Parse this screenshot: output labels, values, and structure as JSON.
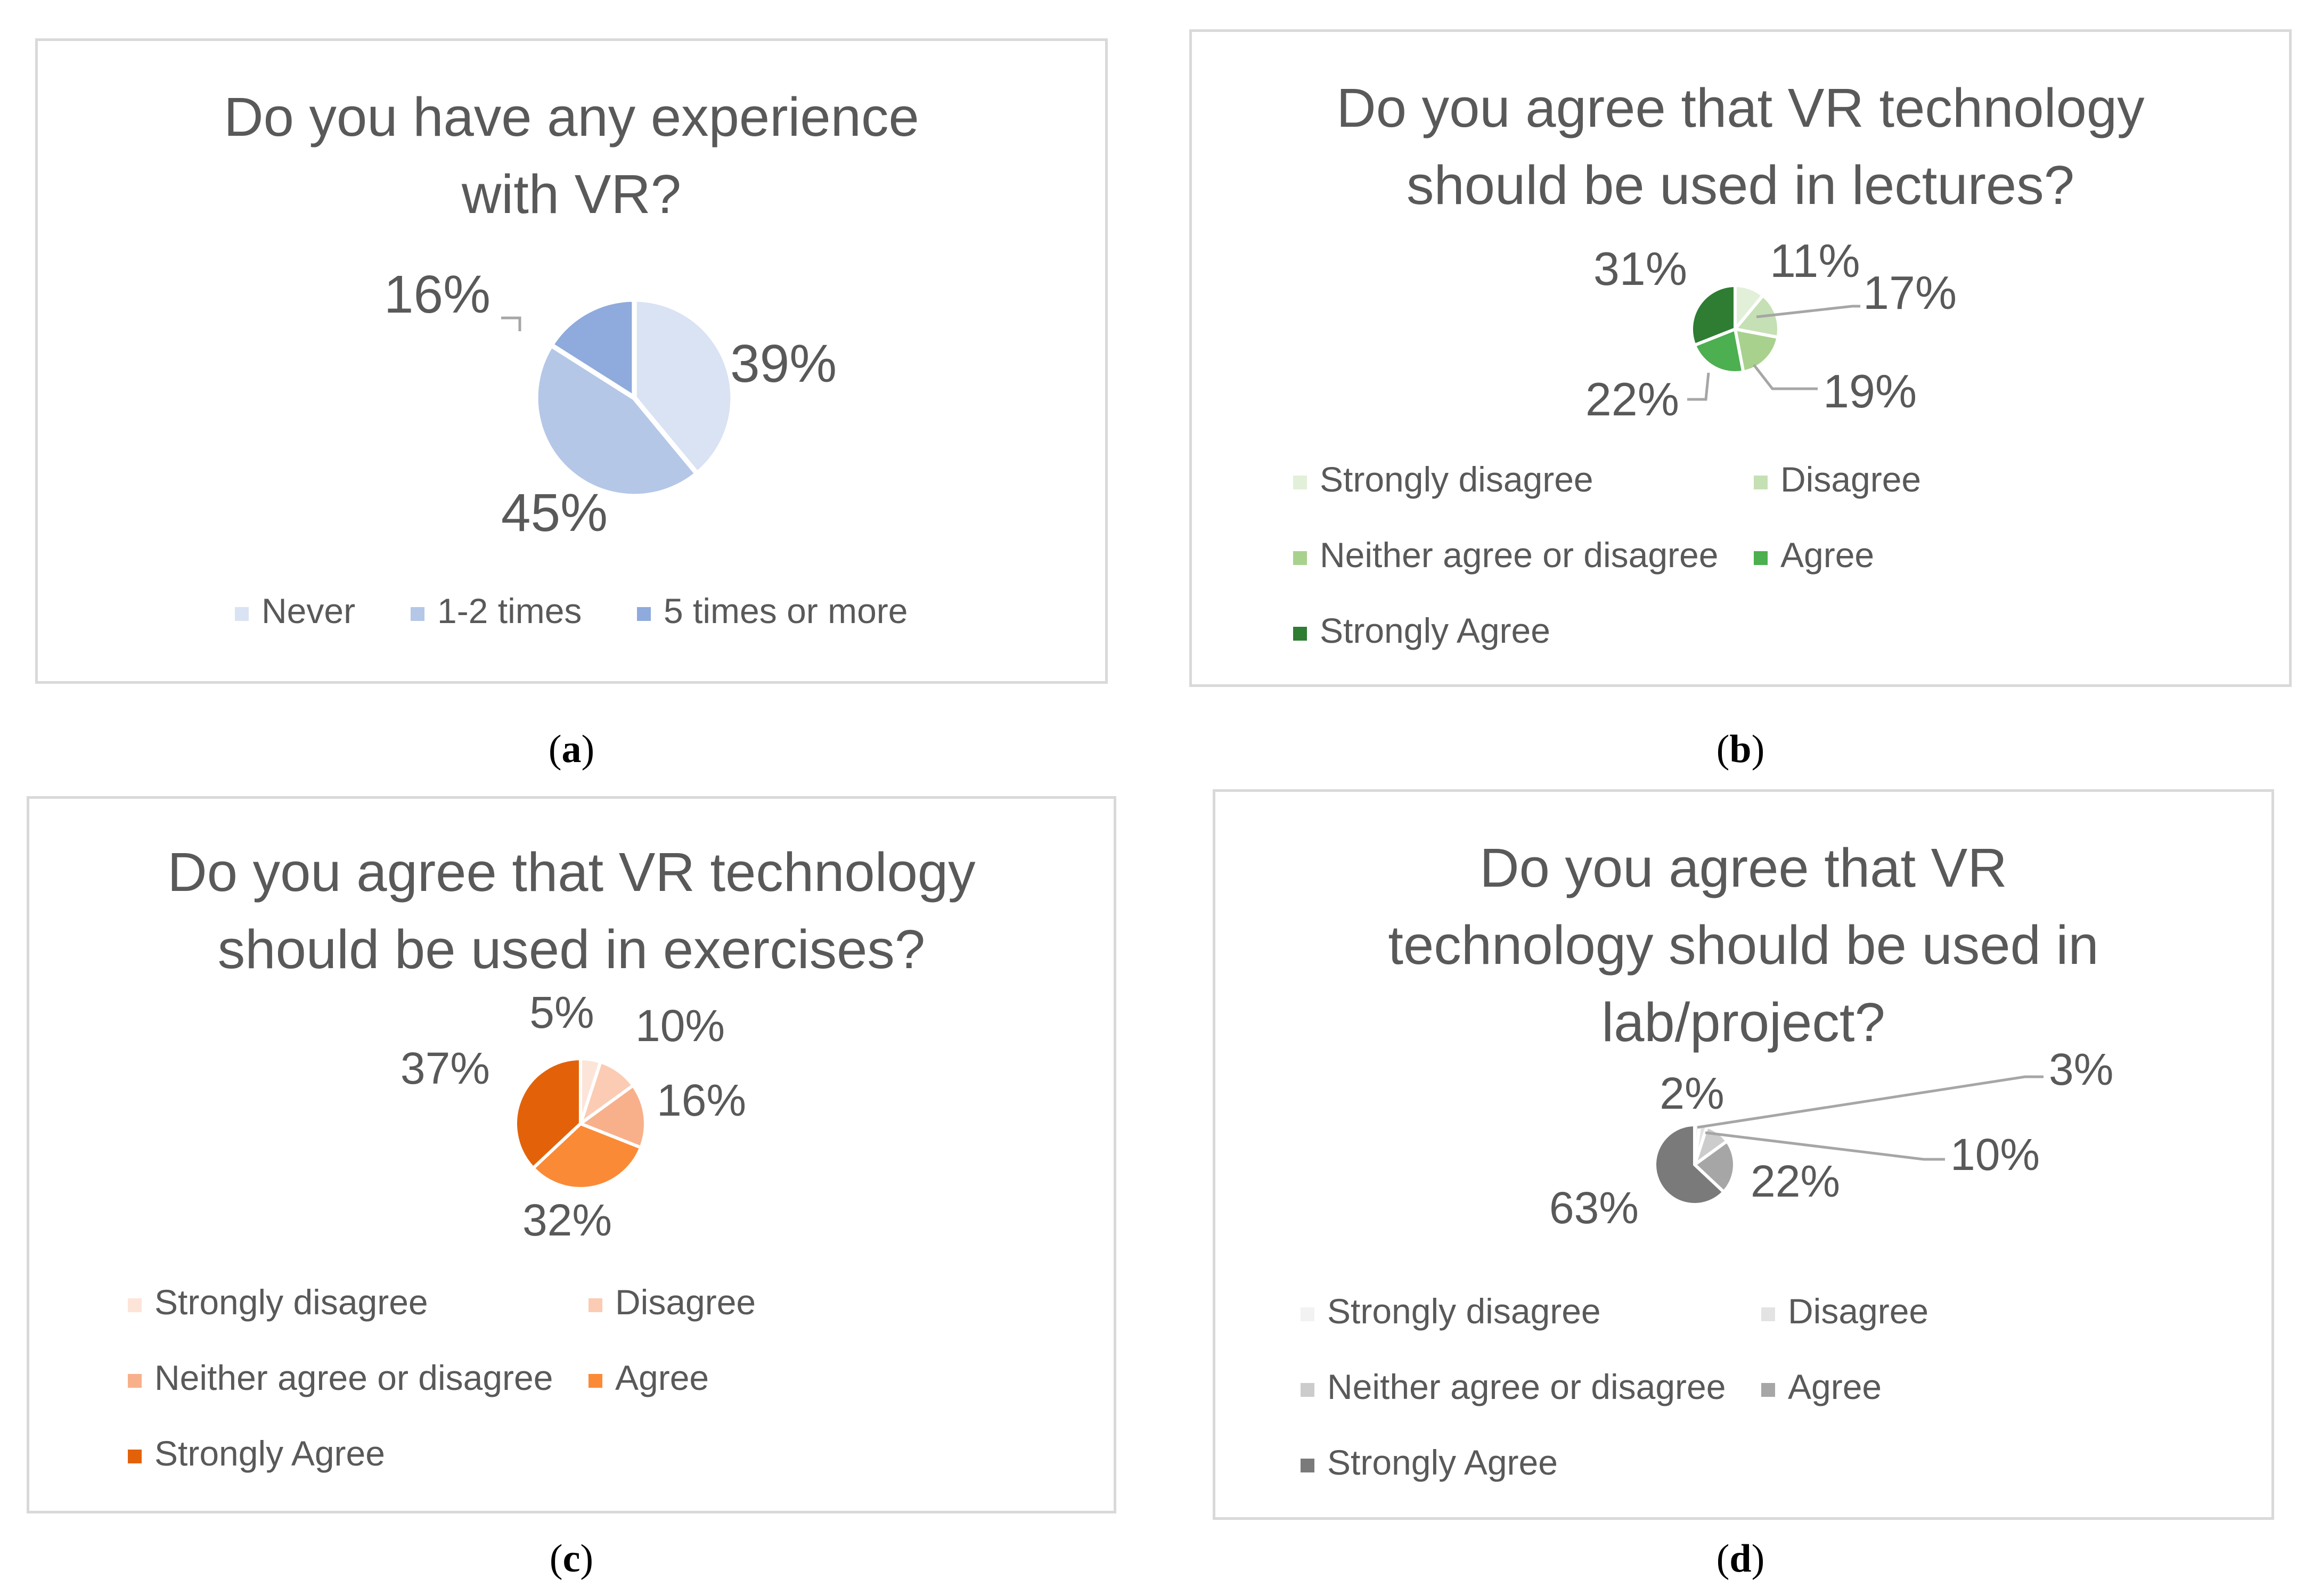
{
  "chart_data": [
    {
      "type": "pie",
      "title_lines": [
        "Do you have any experience",
        "with VR?"
      ],
      "caption": "a",
      "categories": [
        "Never",
        "1-2 times",
        "5 times or more"
      ],
      "values": [
        39,
        45,
        16
      ],
      "data_labels": [
        "39%",
        "45%",
        "16%"
      ],
      "colors": [
        "#dae3f3",
        "#b4c7e7",
        "#8faadc"
      ],
      "legend_position": "bottom"
    },
    {
      "type": "pie",
      "title_lines": [
        "Do you agree that VR technology",
        "should be used in lectures?"
      ],
      "caption": "b",
      "categories": [
        "Strongly disagree",
        "Disagree",
        "Neither agree or disagree",
        "Agree",
        "Strongly Agree"
      ],
      "values": [
        11,
        17,
        19,
        22,
        31
      ],
      "data_labels": [
        "11%",
        "17%",
        "19%",
        "22%",
        "31%"
      ],
      "colors": [
        "#e2f0d9",
        "#c5e0b4",
        "#a9d18e",
        "#4caf50",
        "#2e7d32"
      ],
      "legend_position": "bottom"
    },
    {
      "type": "pie",
      "title_lines": [
        "Do you agree that VR technology",
        "should be used in exercises?"
      ],
      "caption": "c",
      "categories": [
        "Strongly disagree",
        "Disagree",
        "Neither agree or disagree",
        "Agree",
        "Strongly Agree"
      ],
      "values": [
        5,
        10,
        16,
        32,
        37
      ],
      "data_labels": [
        "5%",
        "10%",
        "16%",
        "32%",
        "37%"
      ],
      "colors": [
        "#fde4d9",
        "#fbcbb3",
        "#f8b08a",
        "#fb8a36",
        "#e36209"
      ],
      "legend_position": "bottom"
    },
    {
      "type": "pie",
      "title_lines": [
        "Do you agree that VR",
        "technology should be used in",
        "lab/project?"
      ],
      "caption": "d",
      "categories": [
        "Strongly disagree",
        "Disagree",
        "Neither agree or disagree",
        "Agree",
        "Strongly Agree"
      ],
      "values": [
        2,
        3,
        10,
        22,
        63
      ],
      "data_labels": [
        "2%",
        "3%",
        "10%",
        "22%",
        "63%"
      ],
      "colors": [
        "#f2f2f2",
        "#e3e3e3",
        "#cccccc",
        "#a6a6a6",
        "#7a7a7a"
      ],
      "legend_position": "bottom"
    }
  ]
}
